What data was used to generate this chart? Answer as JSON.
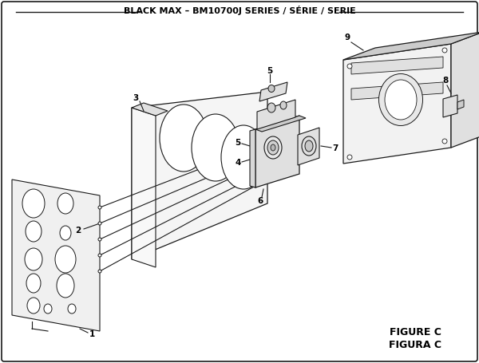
{
  "title": "BLACK MAX – BM10700J SERIES / SÉRIE / SERIE",
  "bg_color": "#ffffff",
  "line_color": "#1a1a1a",
  "fill_light": "#f0f0f0",
  "fill_mid": "#e0e0e0",
  "fill_dark": "#cccccc",
  "figure_c_text": "FIGURE C",
  "figura_c_text": "FIGURA C",
  "figure_width": 6.0,
  "figure_height": 4.55,
  "dpi": 100
}
